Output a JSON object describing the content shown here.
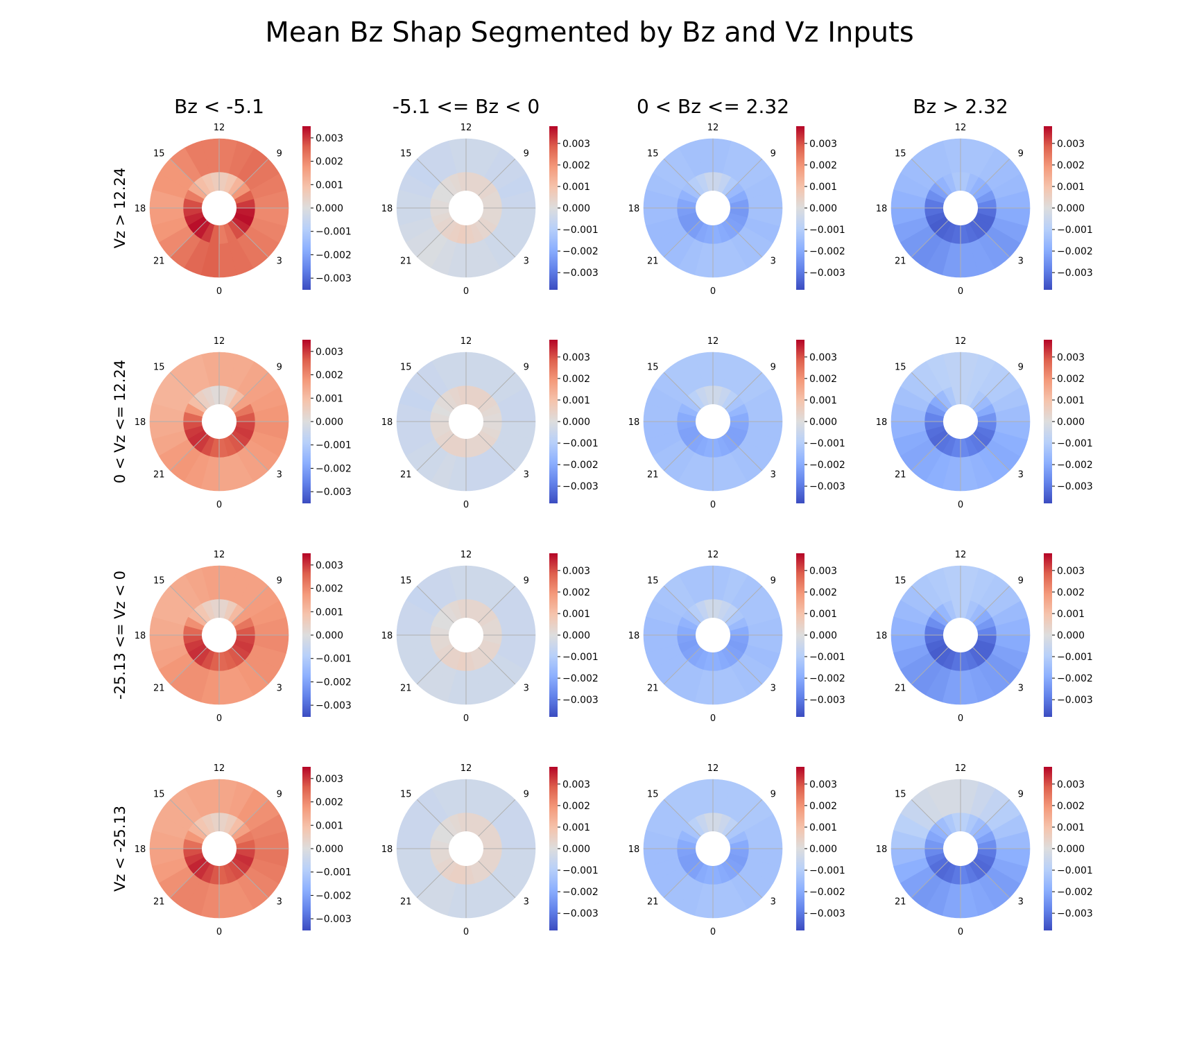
{
  "chart_data": {
    "type": "heatmap",
    "title": "Mean Bz Shap Segmented by Bz and Vz Inputs",
    "columns": [
      "Bz < -5.1",
      "-5.1 <= Bz < 0",
      "0 < Bz <= 2.32",
      "Bz > 2.32"
    ],
    "rows": [
      "Vz > 12.24",
      "0 < Vz <= 12.24",
      "-25.13 <= Vz < 0",
      "Vz < -25.13"
    ],
    "hour_labels": [
      "12",
      "9",
      "3",
      "0",
      "21",
      "18",
      "15"
    ],
    "colorbar": {
      "colormap": "coolwarm",
      "ticks": [
        "0.003",
        "0.002",
        "0.001",
        "0.000",
        "−0.001",
        "−0.002",
        "−0.003"
      ],
      "tick_values": [
        0.003,
        0.002,
        0.001,
        0.0,
        -0.001,
        -0.002,
        -0.003
      ]
    },
    "panel_color_ranges": [
      [
        -0.0035,
        0.0035
      ],
      [
        -0.0038,
        0.0038
      ],
      [
        -0.0038,
        0.0038
      ],
      [
        -0.0038,
        0.0038
      ]
    ],
    "panels": [
      {
        "row": 0,
        "col": 0,
        "inner": [
          0.0006,
          0.0008,
          0.001,
          0.0014,
          0.0022,
          0.0028,
          0.003,
          0.0032,
          0.0034,
          0.0033,
          0.003,
          0.0026,
          0.0022,
          0.0024,
          0.0028,
          0.0032,
          0.0034,
          0.0033,
          0.003,
          0.0026,
          0.0018,
          0.0012,
          0.0008,
          0.0006
        ],
        "outer": [
          0.0022,
          0.0022,
          0.002,
          0.0018,
          0.0018,
          0.0016,
          0.0017,
          0.0018,
          0.002,
          0.0023,
          0.0025,
          0.0026,
          0.0024,
          0.0024,
          0.0023,
          0.0022,
          0.0021,
          0.002,
          0.0021,
          0.0022,
          0.0023,
          0.0024,
          0.0023,
          0.0022
        ]
      },
      {
        "row": 0,
        "col": 1,
        "inner": [
          0.0003,
          0.0002,
          0.0001,
          0.0,
          0.0,
          0.0001,
          0.0001,
          0.0002,
          0.0003,
          0.0004,
          0.0005,
          0.0006,
          0.0005,
          0.0004,
          0.0003,
          0.0003,
          0.0002,
          0.0002,
          0.0002,
          0.0002,
          0.0003,
          0.0003,
          0.0003,
          0.0003
        ],
        "outer": [
          -0.0004,
          -0.0005,
          -0.0005,
          -0.0006,
          -0.0005,
          -0.0004,
          -0.0004,
          -0.0003,
          -0.0002,
          -0.0001,
          -0.0002,
          -0.0003,
          -0.0003,
          -0.0003,
          -0.0004,
          -0.0004,
          -0.0004,
          -0.0004,
          -0.0005,
          -0.0006,
          -0.0005,
          -0.0005,
          -0.0004,
          -0.0004
        ]
      },
      {
        "row": 0,
        "col": 2,
        "inner": [
          -0.0005,
          -0.0008,
          -0.001,
          -0.0014,
          -0.0018,
          -0.0021,
          -0.0023,
          -0.0024,
          -0.0024,
          -0.0023,
          -0.0021,
          -0.002,
          -0.0019,
          -0.002,
          -0.0021,
          -0.0022,
          -0.0023,
          -0.0024,
          -0.0023,
          -0.002,
          -0.0016,
          -0.0011,
          -0.0007,
          -0.0005
        ],
        "outer": [
          -0.0014,
          -0.0014,
          -0.0013,
          -0.0013,
          -0.0014,
          -0.0015,
          -0.0015,
          -0.0016,
          -0.0016,
          -0.0015,
          -0.0014,
          -0.0013,
          -0.0013,
          -0.0013,
          -0.0014,
          -0.0014,
          -0.0015,
          -0.0014,
          -0.0014,
          -0.0014,
          -0.0013,
          -0.0013,
          -0.0013,
          -0.0014
        ]
      },
      {
        "row": 0,
        "col": 3,
        "inner": [
          -0.0012,
          -0.0015,
          -0.0018,
          -0.0022,
          -0.0026,
          -0.003,
          -0.0032,
          -0.0034,
          -0.0035,
          -0.0034,
          -0.0033,
          -0.0032,
          -0.0031,
          -0.0032,
          -0.0033,
          -0.0034,
          -0.0034,
          -0.0032,
          -0.0028,
          -0.0024,
          -0.002,
          -0.0018,
          -0.0015,
          -0.0012
        ],
        "outer": [
          -0.0013,
          -0.0014,
          -0.0014,
          -0.0015,
          -0.0016,
          -0.0018,
          -0.002,
          -0.0022,
          -0.0024,
          -0.0026,
          -0.0025,
          -0.0023,
          -0.0022,
          -0.0022,
          -0.0023,
          -0.0024,
          -0.0022,
          -0.002,
          -0.0018,
          -0.0016,
          -0.0015,
          -0.0014,
          -0.0013,
          -0.0013
        ]
      },
      {
        "row": 1,
        "col": 0,
        "inner": [
          0.0001,
          0.0003,
          0.0005,
          0.001,
          0.0018,
          0.0025,
          0.0028,
          0.003,
          0.0031,
          0.003,
          0.0028,
          0.0026,
          0.0025,
          0.0026,
          0.0027,
          0.0029,
          0.003,
          0.0029,
          0.0027,
          0.0023,
          0.0016,
          0.001,
          0.0005,
          0.0002
        ],
        "outer": [
          0.0014,
          0.0013,
          0.0013,
          0.0012,
          0.0012,
          0.0013,
          0.0014,
          0.0015,
          0.0017,
          0.0018,
          0.0017,
          0.0016,
          0.0015,
          0.0015,
          0.0016,
          0.0017,
          0.0018,
          0.0019,
          0.0018,
          0.0017,
          0.0016,
          0.0015,
          0.0014,
          0.0014
        ]
      },
      {
        "row": 1,
        "col": 1,
        "inner": [
          0.0004,
          0.0003,
          0.0002,
          0.0001,
          0.0,
          0.0001,
          0.0002,
          0.0002,
          0.0003,
          0.0004,
          0.0004,
          0.0004,
          0.0003,
          0.0003,
          0.0003,
          0.0003,
          0.0002,
          0.0001,
          0.0001,
          0.0002,
          0.0003,
          0.0004,
          0.0004,
          0.0004
        ],
        "outer": [
          -0.0004,
          -0.0004,
          -0.0005,
          -0.0005,
          -0.0006,
          -0.0005,
          -0.0005,
          -0.0005,
          -0.0004,
          -0.0004,
          -0.0003,
          -0.0004,
          -0.0005,
          -0.0005,
          -0.0005,
          -0.0004,
          -0.0004,
          -0.0004,
          -0.0005,
          -0.0005,
          -0.0004,
          -0.0004,
          -0.0004,
          -0.0004
        ]
      },
      {
        "row": 1,
        "col": 2,
        "inner": [
          -0.0004,
          -0.0006,
          -0.0009,
          -0.0013,
          -0.0017,
          -0.002,
          -0.0021,
          -0.0022,
          -0.0022,
          -0.0021,
          -0.002,
          -0.0019,
          -0.0019,
          -0.002,
          -0.0021,
          -0.0022,
          -0.0022,
          -0.0021,
          -0.002,
          -0.0017,
          -0.0013,
          -0.0009,
          -0.0006,
          -0.0004
        ],
        "outer": [
          -0.0012,
          -0.0012,
          -0.0012,
          -0.0013,
          -0.0014,
          -0.0014,
          -0.0015,
          -0.0015,
          -0.0014,
          -0.0014,
          -0.0013,
          -0.0013,
          -0.0013,
          -0.0013,
          -0.0014,
          -0.0014,
          -0.0014,
          -0.0014,
          -0.0013,
          -0.0013,
          -0.0012,
          -0.0012,
          -0.0012,
          -0.0012
        ]
      },
      {
        "row": 1,
        "col": 3,
        "inner": [
          -0.0008,
          -0.0012,
          -0.0016,
          -0.002,
          -0.0024,
          -0.0028,
          -0.003,
          -0.0032,
          -0.0033,
          -0.0031,
          -0.003,
          -0.0028,
          -0.0027,
          -0.0029,
          -0.003,
          -0.0032,
          -0.0031,
          -0.0028,
          -0.0025,
          -0.002,
          -0.0016,
          -0.0012,
          -0.0009,
          -0.0008
        ],
        "outer": [
          -0.0008,
          -0.0009,
          -0.001,
          -0.0012,
          -0.0014,
          -0.0016,
          -0.0018,
          -0.002,
          -0.0021,
          -0.002,
          -0.0019,
          -0.0018,
          -0.0017,
          -0.0018,
          -0.0019,
          -0.002,
          -0.0019,
          -0.0017,
          -0.0015,
          -0.0013,
          -0.0011,
          -0.001,
          -0.0009,
          -0.0008
        ]
      },
      {
        "row": 2,
        "col": 0,
        "inner": [
          0.0003,
          0.0005,
          0.0008,
          0.0012,
          0.0019,
          0.0025,
          0.0028,
          0.003,
          0.0031,
          0.003,
          0.0028,
          0.0026,
          0.0025,
          0.0026,
          0.0027,
          0.0029,
          0.003,
          0.0029,
          0.0027,
          0.0023,
          0.0017,
          0.0011,
          0.0006,
          0.0003
        ],
        "outer": [
          0.0016,
          0.0015,
          0.0014,
          0.0013,
          0.0013,
          0.0014,
          0.0015,
          0.0016,
          0.0018,
          0.0019,
          0.0019,
          0.0018,
          0.0017,
          0.0017,
          0.0018,
          0.0019,
          0.0019,
          0.002,
          0.0019,
          0.0018,
          0.0017,
          0.0016,
          0.0016,
          0.0016
        ]
      },
      {
        "row": 2,
        "col": 1,
        "inner": [
          0.0003,
          0.0002,
          0.0001,
          0.0,
          0.0,
          0.0001,
          0.0002,
          0.0002,
          0.0003,
          0.0004,
          0.0004,
          0.0005,
          0.0004,
          0.0003,
          0.0003,
          0.0003,
          0.0003,
          0.0002,
          0.0002,
          0.0002,
          0.0003,
          0.0003,
          0.0003,
          0.0003
        ],
        "outer": [
          -0.0004,
          -0.0005,
          -0.0005,
          -0.0006,
          -0.0005,
          -0.0005,
          -0.0004,
          -0.0004,
          -0.0004,
          -0.0003,
          -0.0003,
          -0.0004,
          -0.0004,
          -0.0004,
          -0.0004,
          -0.0004,
          -0.0005,
          -0.0005,
          -0.0005,
          -0.0005,
          -0.0005,
          -0.0004,
          -0.0004,
          -0.0004
        ]
      },
      {
        "row": 2,
        "col": 2,
        "inner": [
          -0.0004,
          -0.0007,
          -0.001,
          -0.0014,
          -0.0018,
          -0.002,
          -0.0022,
          -0.0023,
          -0.0022,
          -0.0021,
          -0.002,
          -0.0019,
          -0.0019,
          -0.002,
          -0.0021,
          -0.0022,
          -0.0023,
          -0.0022,
          -0.002,
          -0.0016,
          -0.0012,
          -0.0008,
          -0.0006,
          -0.0004
        ],
        "outer": [
          -0.0013,
          -0.0013,
          -0.0012,
          -0.0013,
          -0.0014,
          -0.0015,
          -0.0015,
          -0.0015,
          -0.0015,
          -0.0014,
          -0.0014,
          -0.0013,
          -0.0013,
          -0.0013,
          -0.0014,
          -0.0014,
          -0.0015,
          -0.0014,
          -0.0014,
          -0.0013,
          -0.0013,
          -0.0013,
          -0.0012,
          -0.0013
        ]
      },
      {
        "row": 2,
        "col": 3,
        "inner": [
          -0.001,
          -0.0013,
          -0.0017,
          -0.0021,
          -0.0026,
          -0.003,
          -0.0032,
          -0.0034,
          -0.0035,
          -0.0034,
          -0.0033,
          -0.0031,
          -0.003,
          -0.0031,
          -0.0033,
          -0.0034,
          -0.0034,
          -0.0032,
          -0.0028,
          -0.0024,
          -0.002,
          -0.0016,
          -0.0013,
          -0.001
        ],
        "outer": [
          -0.001,
          -0.0011,
          -0.0012,
          -0.0014,
          -0.0016,
          -0.0018,
          -0.002,
          -0.0022,
          -0.0024,
          -0.0025,
          -0.0024,
          -0.0022,
          -0.0021,
          -0.0022,
          -0.0023,
          -0.0024,
          -0.0022,
          -0.002,
          -0.0018,
          -0.0016,
          -0.0013,
          -0.0012,
          -0.0011,
          -0.001
        ]
      },
      {
        "row": 3,
        "col": 0,
        "inner": [
          0.0004,
          0.0006,
          0.0008,
          0.0012,
          0.0018,
          0.0024,
          0.0028,
          0.003,
          0.0032,
          0.0031,
          0.0029,
          0.0027,
          0.0026,
          0.0027,
          0.0028,
          0.003,
          0.0031,
          0.0029,
          0.0026,
          0.0022,
          0.0016,
          0.001,
          0.0006,
          0.0004
        ],
        "outer": [
          0.0015,
          0.0015,
          0.0014,
          0.0014,
          0.0014,
          0.0015,
          0.0016,
          0.0017,
          0.0019,
          0.0021,
          0.0021,
          0.002,
          0.0019,
          0.0019,
          0.002,
          0.0021,
          0.0022,
          0.0023,
          0.0022,
          0.0021,
          0.0019,
          0.0018,
          0.0016,
          0.0015
        ]
      },
      {
        "row": 3,
        "col": 1,
        "inner": [
          0.0003,
          0.0002,
          0.0001,
          0.0,
          0.0,
          0.0001,
          0.0002,
          0.0002,
          0.0003,
          0.0004,
          0.0005,
          0.0005,
          0.0004,
          0.0003,
          0.0003,
          0.0003,
          0.0003,
          0.0003,
          0.0003,
          0.0003,
          0.0003,
          0.0003,
          0.0003,
          0.0003
        ],
        "outer": [
          -0.0004,
          -0.0004,
          -0.0005,
          -0.0005,
          -0.0005,
          -0.0005,
          -0.0004,
          -0.0004,
          -0.0004,
          -0.0003,
          -0.0003,
          -0.0004,
          -0.0004,
          -0.0004,
          -0.0004,
          -0.0004,
          -0.0004,
          -0.0004,
          -0.0005,
          -0.0005,
          -0.0005,
          -0.0004,
          -0.0004,
          -0.0004
        ]
      },
      {
        "row": 3,
        "col": 2,
        "inner": [
          -0.0003,
          -0.0006,
          -0.0009,
          -0.0013,
          -0.0017,
          -0.002,
          -0.0022,
          -0.0023,
          -0.0023,
          -0.0022,
          -0.002,
          -0.0019,
          -0.0019,
          -0.002,
          -0.0021,
          -0.0022,
          -0.0023,
          -0.0022,
          -0.002,
          -0.0016,
          -0.0012,
          -0.0008,
          -0.0005,
          -0.0003
        ],
        "outer": [
          -0.0012,
          -0.0012,
          -0.0012,
          -0.0013,
          -0.0013,
          -0.0014,
          -0.0015,
          -0.0015,
          -0.0015,
          -0.0014,
          -0.0014,
          -0.0013,
          -0.0013,
          -0.0013,
          -0.0014,
          -0.0014,
          -0.0014,
          -0.0014,
          -0.0013,
          -0.0013,
          -0.0012,
          -0.0012,
          -0.0012,
          -0.0012
        ]
      },
      {
        "row": 3,
        "col": 3,
        "inner": [
          -0.0009,
          -0.0012,
          -0.0015,
          -0.0018,
          -0.0021,
          -0.0024,
          -0.0027,
          -0.003,
          -0.0032,
          -0.0033,
          -0.0032,
          -0.003,
          -0.0028,
          -0.003,
          -0.0032,
          -0.0033,
          -0.0032,
          -0.003,
          -0.0026,
          -0.0022,
          -0.0018,
          -0.0015,
          -0.0012,
          -0.0009
        ],
        "outer": [
          -0.0002,
          -0.0002,
          -0.0003,
          -0.0006,
          -0.0009,
          -0.0012,
          -0.0016,
          -0.0019,
          -0.0022,
          -0.0024,
          -0.0023,
          -0.0021,
          -0.002,
          -0.0021,
          -0.0022,
          -0.0023,
          -0.0021,
          -0.0019,
          -0.0016,
          -0.0013,
          -0.001,
          -0.0007,
          -0.0005,
          -0.0003
        ]
      }
    ]
  }
}
